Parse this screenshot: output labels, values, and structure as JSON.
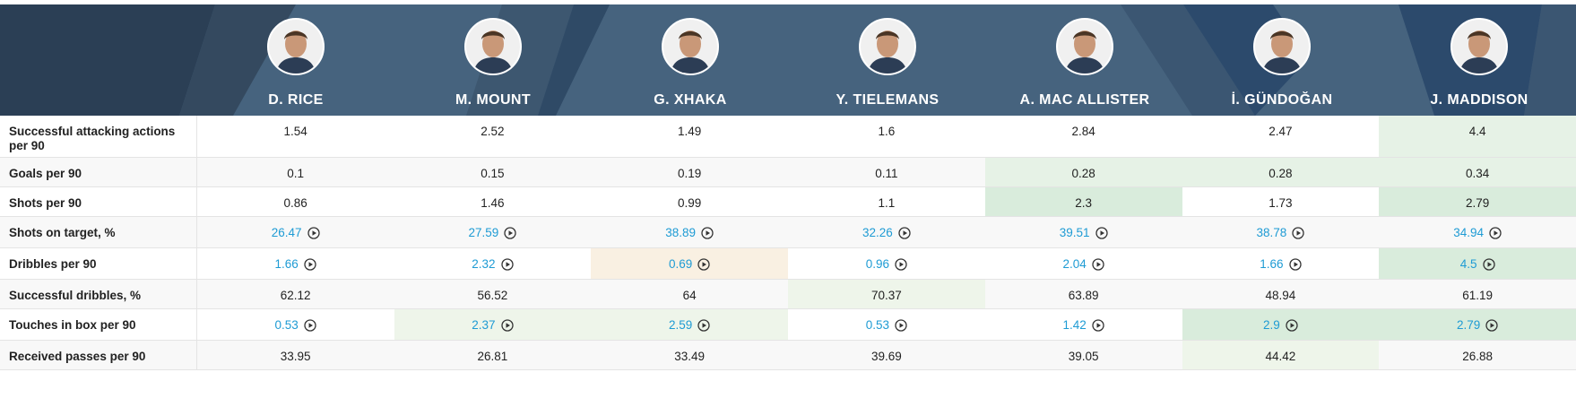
{
  "players": [
    {
      "name": "D. RICE",
      "avatar_icon": "player-avatar-icon"
    },
    {
      "name": "M. MOUNT",
      "avatar_icon": "player-avatar-icon"
    },
    {
      "name": "G. XHAKA",
      "avatar_icon": "player-avatar-icon"
    },
    {
      "name": "Y. TIELEMANS",
      "avatar_icon": "player-avatar-icon"
    },
    {
      "name": "A. MAC ALLISTER",
      "avatar_icon": "player-avatar-icon"
    },
    {
      "name": "İ. GÜNDOĞAN",
      "avatar_icon": "player-avatar-icon"
    },
    {
      "name": "J. MADDISON",
      "avatar_icon": "player-avatar-icon"
    }
  ],
  "colors": {
    "header_bg": "#46637e",
    "link": "#1e9bd4",
    "good_strong": "#d9ecdc",
    "good": "#e6f2e6",
    "good_light": "#eef5ea",
    "bad_light": "#f9f0e2"
  },
  "rows": [
    {
      "label": "Successful attacking actions per 90",
      "link": false,
      "values": [
        "1.54",
        "2.52",
        "1.49",
        "1.6",
        "2.84",
        "2.47",
        "4.4"
      ],
      "highlights": [
        "",
        "",
        "",
        "",
        "",
        "",
        "good"
      ]
    },
    {
      "label": "Goals per 90",
      "link": false,
      "values": [
        "0.1",
        "0.15",
        "0.19",
        "0.11",
        "0.28",
        "0.28",
        "0.34"
      ],
      "highlights": [
        "",
        "",
        "",
        "",
        "good",
        "good",
        "good"
      ]
    },
    {
      "label": "Shots per 90",
      "link": false,
      "values": [
        "0.86",
        "1.46",
        "0.99",
        "1.1",
        "2.3",
        "1.73",
        "2.79"
      ],
      "highlights": [
        "",
        "",
        "",
        "",
        "good_strong",
        "",
        "good_strong"
      ]
    },
    {
      "label": "Shots on target, %",
      "link": true,
      "play_icon": "play-circle-icon",
      "values": [
        "26.47",
        "27.59",
        "38.89",
        "32.26",
        "39.51",
        "38.78",
        "34.94"
      ],
      "highlights": [
        "",
        "",
        "",
        "",
        "",
        "",
        ""
      ]
    },
    {
      "label": "Dribbles per 90",
      "link": true,
      "play_icon": "play-circle-icon",
      "values": [
        "1.66",
        "2.32",
        "0.69",
        "0.96",
        "2.04",
        "1.66",
        "4.5"
      ],
      "highlights": [
        "",
        "",
        "bad_light",
        "",
        "",
        "",
        "good_strong"
      ]
    },
    {
      "label": "Successful dribbles, %",
      "link": false,
      "values": [
        "62.12",
        "56.52",
        "64",
        "70.37",
        "63.89",
        "48.94",
        "61.19"
      ],
      "highlights": [
        "",
        "",
        "",
        "good_light",
        "",
        "",
        ""
      ]
    },
    {
      "label": "Touches in box per 90",
      "link": true,
      "play_icon": "play-circle-icon",
      "values": [
        "0.53",
        "2.37",
        "2.59",
        "0.53",
        "1.42",
        "2.9",
        "2.79"
      ],
      "highlights": [
        "",
        "good_light",
        "good_light",
        "",
        "",
        "good_strong",
        "good_strong"
      ]
    },
    {
      "label": "Received passes per 90",
      "link": false,
      "values": [
        "33.95",
        "26.81",
        "33.49",
        "39.69",
        "39.05",
        "44.42",
        "26.88"
      ],
      "highlights": [
        "",
        "",
        "",
        "",
        "",
        "good_light",
        ""
      ]
    }
  ]
}
